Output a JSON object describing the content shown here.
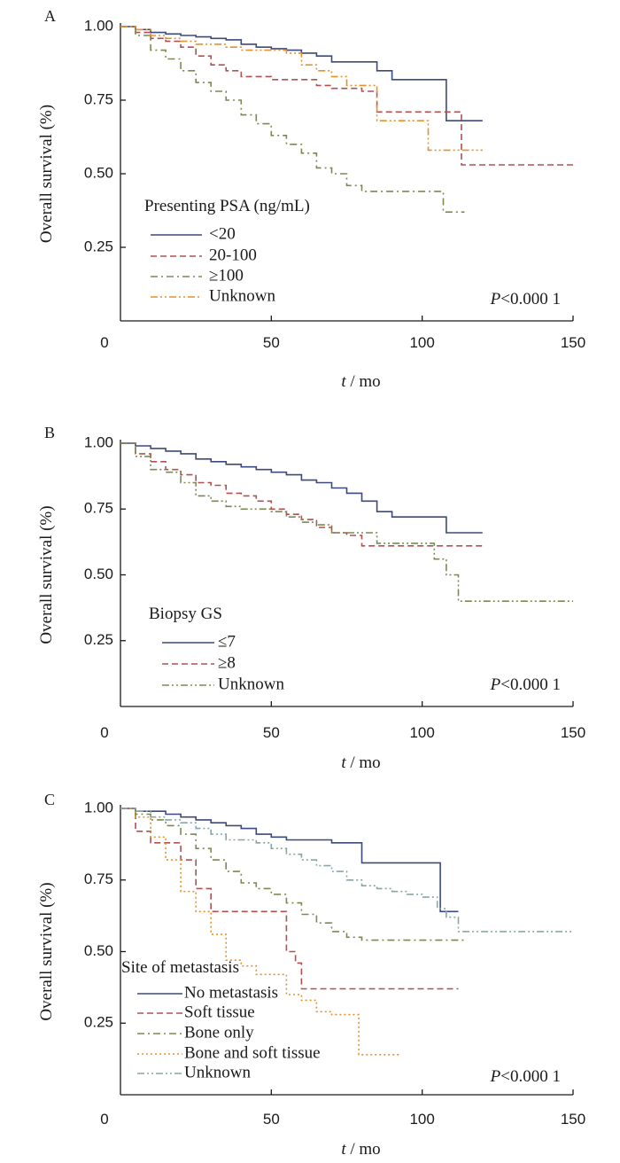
{
  "chart_data": [
    {
      "type": "line",
      "panel": "A",
      "xlabel_italic": "t",
      "xlabel_rest": " / mo",
      "ylabel": "Overall survival (%)",
      "xlim": [
        0,
        150
      ],
      "ylim": [
        0,
        1
      ],
      "x_ticks": [
        "0",
        "50",
        "100",
        "150"
      ],
      "y_ticks": [
        "0.25",
        "0.50",
        "0.75",
        "1.00"
      ],
      "legend_title": "Presenting PSA (ng/mL)",
      "p_italic": "P",
      "p_rest": "<0.000 1",
      "series": [
        {
          "name": "<20",
          "color": "#3b4a7a",
          "dash": "solid",
          "x": [
            0,
            5,
            10,
            15,
            20,
            25,
            30,
            35,
            40,
            45,
            50,
            55,
            60,
            65,
            70,
            75,
            80,
            85,
            90,
            95,
            100,
            105,
            108,
            110,
            115,
            120
          ],
          "y": [
            1.0,
            0.99,
            0.98,
            0.975,
            0.97,
            0.965,
            0.96,
            0.955,
            0.94,
            0.93,
            0.925,
            0.92,
            0.91,
            0.9,
            0.88,
            0.88,
            0.88,
            0.85,
            0.82,
            0.82,
            0.82,
            0.82,
            0.68,
            0.68,
            0.68,
            0.68
          ]
        },
        {
          "name": "20-100",
          "color": "#b05050",
          "dash": "dashed",
          "x": [
            0,
            5,
            10,
            15,
            20,
            25,
            30,
            35,
            40,
            45,
            50,
            55,
            60,
            65,
            70,
            75,
            80,
            85,
            90,
            95,
            100,
            105,
            110,
            113,
            120,
            130,
            140,
            150
          ],
          "y": [
            1.0,
            0.98,
            0.96,
            0.95,
            0.93,
            0.9,
            0.87,
            0.85,
            0.83,
            0.83,
            0.82,
            0.82,
            0.82,
            0.8,
            0.79,
            0.79,
            0.78,
            0.71,
            0.71,
            0.71,
            0.71,
            0.71,
            0.71,
            0.53,
            0.53,
            0.53,
            0.53,
            0.53
          ]
        },
        {
          "name": "≥100",
          "color": "#7a8a50",
          "dash": "dashdot",
          "x": [
            0,
            5,
            10,
            15,
            20,
            25,
            30,
            35,
            40,
            45,
            50,
            55,
            60,
            65,
            70,
            75,
            80,
            85,
            90,
            95,
            100,
            105,
            107,
            110,
            114
          ],
          "y": [
            1.0,
            0.97,
            0.92,
            0.89,
            0.85,
            0.81,
            0.78,
            0.75,
            0.7,
            0.67,
            0.63,
            0.6,
            0.57,
            0.52,
            0.5,
            0.46,
            0.44,
            0.44,
            0.44,
            0.44,
            0.44,
            0.44,
            0.37,
            0.37,
            0.37
          ]
        },
        {
          "name": "Unknown",
          "color": "#e8902a",
          "dash": "dashdotdot",
          "x": [
            0,
            5,
            10,
            15,
            20,
            25,
            30,
            35,
            40,
            45,
            50,
            55,
            60,
            65,
            70,
            75,
            80,
            85,
            90,
            95,
            100,
            102,
            105,
            110,
            115,
            120
          ],
          "y": [
            1.0,
            0.99,
            0.97,
            0.96,
            0.95,
            0.94,
            0.94,
            0.93,
            0.92,
            0.92,
            0.92,
            0.91,
            0.87,
            0.85,
            0.83,
            0.8,
            0.8,
            0.68,
            0.68,
            0.68,
            0.68,
            0.58,
            0.58,
            0.58,
            0.58,
            0.58
          ]
        }
      ]
    },
    {
      "type": "line",
      "panel": "B",
      "xlabel_italic": "t",
      "xlabel_rest": " / mo",
      "ylabel": "Overall survival (%)",
      "xlim": [
        0,
        150
      ],
      "ylim": [
        0,
        1
      ],
      "x_ticks": [
        "0",
        "50",
        "100",
        "150"
      ],
      "y_ticks": [
        "0.25",
        "0.50",
        "0.75",
        "1.00"
      ],
      "legend_title": "Biopsy GS",
      "p_italic": "P",
      "p_rest": "<0.000 1",
      "series": [
        {
          "name": "≤7",
          "color": "#3b4a7a",
          "dash": "solid",
          "x": [
            0,
            5,
            10,
            15,
            20,
            25,
            30,
            35,
            40,
            45,
            50,
            55,
            60,
            65,
            70,
            75,
            80,
            85,
            90,
            95,
            100,
            105,
            108,
            112,
            120
          ],
          "y": [
            1.0,
            0.99,
            0.98,
            0.97,
            0.96,
            0.94,
            0.93,
            0.92,
            0.91,
            0.9,
            0.89,
            0.88,
            0.86,
            0.85,
            0.83,
            0.81,
            0.78,
            0.74,
            0.72,
            0.72,
            0.72,
            0.72,
            0.66,
            0.66,
            0.66
          ]
        },
        {
          "name": "≥8",
          "color": "#b05050",
          "dash": "dashed",
          "x": [
            0,
            5,
            10,
            15,
            20,
            25,
            30,
            35,
            40,
            45,
            50,
            55,
            60,
            65,
            70,
            75,
            80,
            85,
            90,
            95,
            100,
            105,
            110,
            115,
            120
          ],
          "y": [
            1.0,
            0.96,
            0.93,
            0.9,
            0.88,
            0.85,
            0.84,
            0.81,
            0.8,
            0.78,
            0.75,
            0.73,
            0.71,
            0.68,
            0.66,
            0.65,
            0.61,
            0.61,
            0.61,
            0.61,
            0.61,
            0.61,
            0.61,
            0.61,
            0.61
          ]
        },
        {
          "name": "Unknown",
          "color": "#7a8a50",
          "dash": "dashdotdot",
          "x": [
            0,
            5,
            10,
            15,
            20,
            25,
            30,
            35,
            40,
            45,
            50,
            55,
            60,
            65,
            70,
            75,
            80,
            85,
            90,
            95,
            100,
            104,
            108,
            112,
            120,
            130,
            140,
            150
          ],
          "y": [
            1.0,
            0.95,
            0.9,
            0.89,
            0.85,
            0.8,
            0.78,
            0.76,
            0.75,
            0.75,
            0.74,
            0.72,
            0.7,
            0.69,
            0.66,
            0.66,
            0.66,
            0.62,
            0.62,
            0.62,
            0.62,
            0.56,
            0.5,
            0.4,
            0.4,
            0.4,
            0.4,
            0.4
          ]
        }
      ]
    },
    {
      "type": "line",
      "panel": "C",
      "xlabel_italic": "t",
      "xlabel_rest": " / mo",
      "ylabel": "Overall survival (%)",
      "xlim": [
        0,
        150
      ],
      "ylim": [
        0,
        1
      ],
      "x_ticks": [
        "0",
        "50",
        "100",
        "150"
      ],
      "y_ticks": [
        "0.25",
        "0.50",
        "0.75",
        "1.00"
      ],
      "legend_title": "Site of metastasis",
      "p_italic": "P",
      "p_rest": "<0.000 1",
      "series": [
        {
          "name": "No metastasis",
          "color": "#3b4a7a",
          "dash": "solid",
          "x": [
            0,
            5,
            10,
            15,
            20,
            25,
            30,
            35,
            40,
            45,
            50,
            55,
            60,
            65,
            70,
            75,
            80,
            85,
            90,
            95,
            100,
            106,
            108,
            112
          ],
          "y": [
            1.0,
            0.99,
            0.99,
            0.98,
            0.97,
            0.96,
            0.95,
            0.94,
            0.93,
            0.91,
            0.9,
            0.89,
            0.89,
            0.89,
            0.88,
            0.88,
            0.81,
            0.81,
            0.81,
            0.81,
            0.81,
            0.64,
            0.64,
            0.64
          ]
        },
        {
          "name": "Soft tissue",
          "color": "#b05050",
          "dash": "dashed",
          "x": [
            0,
            5,
            10,
            15,
            20,
            25,
            30,
            35,
            40,
            45,
            50,
            55,
            58,
            60,
            65,
            70,
            80,
            90,
            100,
            112
          ],
          "y": [
            1.0,
            0.92,
            0.88,
            0.88,
            0.82,
            0.72,
            0.64,
            0.64,
            0.64,
            0.64,
            0.64,
            0.5,
            0.46,
            0.37,
            0.37,
            0.37,
            0.37,
            0.37,
            0.37,
            0.37
          ]
        },
        {
          "name": "Bone only",
          "color": "#7a8a50",
          "dash": "dashdot",
          "x": [
            0,
            5,
            10,
            15,
            20,
            25,
            30,
            35,
            40,
            45,
            50,
            55,
            60,
            65,
            70,
            75,
            80,
            85,
            90,
            95,
            100,
            105,
            110,
            114
          ],
          "y": [
            1.0,
            0.98,
            0.96,
            0.94,
            0.91,
            0.86,
            0.82,
            0.78,
            0.74,
            0.72,
            0.7,
            0.67,
            0.63,
            0.6,
            0.57,
            0.55,
            0.54,
            0.54,
            0.54,
            0.54,
            0.54,
            0.54,
            0.54,
            0.54
          ]
        },
        {
          "name": "Bone and soft tissue",
          "color": "#e8902a",
          "dash": "dotted",
          "x": [
            0,
            5,
            10,
            15,
            20,
            25,
            30,
            35,
            40,
            45,
            50,
            55,
            60,
            65,
            70,
            75,
            79,
            85,
            90,
            93
          ],
          "y": [
            1.0,
            0.97,
            0.9,
            0.82,
            0.71,
            0.64,
            0.56,
            0.47,
            0.45,
            0.42,
            0.42,
            0.35,
            0.33,
            0.29,
            0.28,
            0.28,
            0.14,
            0.14,
            0.14,
            0.14
          ]
        },
        {
          "name": "Unknown",
          "color": "#8aa5a5",
          "dash": "dashdotdot",
          "x": [
            0,
            5,
            10,
            15,
            20,
            25,
            30,
            35,
            40,
            45,
            50,
            55,
            60,
            65,
            70,
            75,
            80,
            85,
            90,
            95,
            100,
            105,
            108,
            112,
            120,
            130,
            140,
            150
          ],
          "y": [
            1.0,
            0.99,
            0.97,
            0.96,
            0.95,
            0.93,
            0.91,
            0.89,
            0.89,
            0.88,
            0.86,
            0.84,
            0.82,
            0.8,
            0.78,
            0.75,
            0.73,
            0.72,
            0.71,
            0.7,
            0.69,
            0.65,
            0.62,
            0.57,
            0.57,
            0.57,
            0.57,
            0.57
          ]
        }
      ]
    }
  ]
}
